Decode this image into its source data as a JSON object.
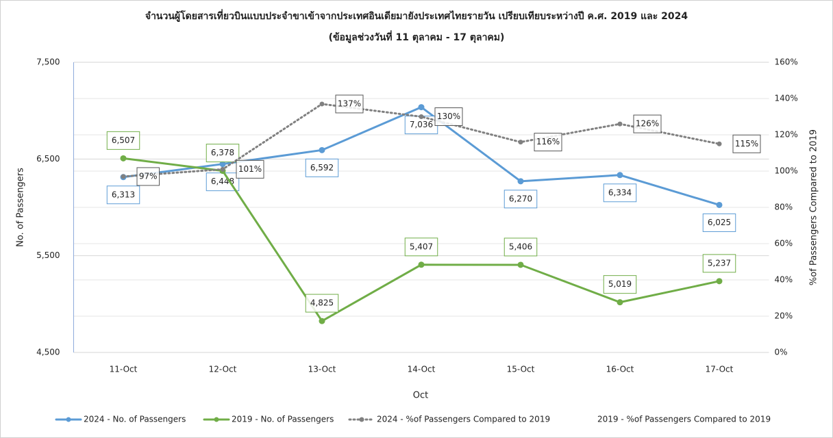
{
  "chart_data": {
    "type": "line",
    "title": "จำนวนผู้โดยสารเที่ยวบินแบบประจำขาเข้าจากประเทศอินเดียมายังประเทศไทยรายวัน เปรียบเทียบระหว่างปี ค.ศ. 2019 และ 2024",
    "subtitle": "(ข้อมูลช่วงวันที่ 11 ตุลาคม - 17 ตุลาคม)",
    "x_label": "Oct",
    "y_label": "No. of Passengers",
    "y2_label": "%of Passengers Compared to 2019",
    "categories": [
      "11-Oct",
      "12-Oct",
      "13-Oct",
      "14-Oct",
      "15-Oct",
      "16-Oct",
      "17-Oct"
    ],
    "ylim": [
      4500,
      7500
    ],
    "yticks": [
      {
        "value": 4500,
        "label": "4,500"
      },
      {
        "value": 5500,
        "label": "5,500"
      },
      {
        "value": 6500,
        "label": "6,500"
      },
      {
        "value": 7500,
        "label": "7,500"
      }
    ],
    "y2lim": [
      0,
      160
    ],
    "y2ticks": [
      {
        "value": 0,
        "label": "0%"
      },
      {
        "value": 20,
        "label": "20%"
      },
      {
        "value": 40,
        "label": "40%"
      },
      {
        "value": 60,
        "label": "60%"
      },
      {
        "value": 80,
        "label": "80%"
      },
      {
        "value": 100,
        "label": "100%"
      },
      {
        "value": 120,
        "label": "120%"
      },
      {
        "value": 140,
        "label": "140%"
      },
      {
        "value": 160,
        "label": "160%"
      }
    ],
    "grid": true,
    "legend": "bottom",
    "series": [
      {
        "name": "2024 - No. of Passengers",
        "color": "#5b9bd5",
        "values": [
          6313,
          6448,
          6592,
          7036,
          6270,
          6334,
          6025
        ],
        "value_labels": [
          "6,313",
          "6,448",
          "6,592",
          "7,036",
          "6,270",
          "6,334",
          "6,025"
        ]
      },
      {
        "name": "2019 - No. of Passengers",
        "color": "#70ad47",
        "values": [
          6507,
          6378,
          4825,
          5407,
          5406,
          5019,
          5237
        ],
        "value_labels": [
          "6,507",
          "6,378",
          "4,825",
          "5,407",
          "5,406",
          "5,019",
          "5,237"
        ]
      },
      {
        "name": "2024 - %of Passengers Compared to 2019",
        "color": "#808080",
        "axis": "y2",
        "values": [
          97,
          101,
          137,
          130,
          116,
          126,
          115
        ],
        "value_labels": [
          "97%",
          "101%",
          "137%",
          "130%",
          "116%",
          "126%",
          "115%"
        ]
      },
      {
        "name": "2019 - %of Passengers Compared to 2019",
        "axis": "y2",
        "values": [
          null,
          null,
          null,
          null,
          null,
          null,
          null
        ]
      }
    ]
  }
}
